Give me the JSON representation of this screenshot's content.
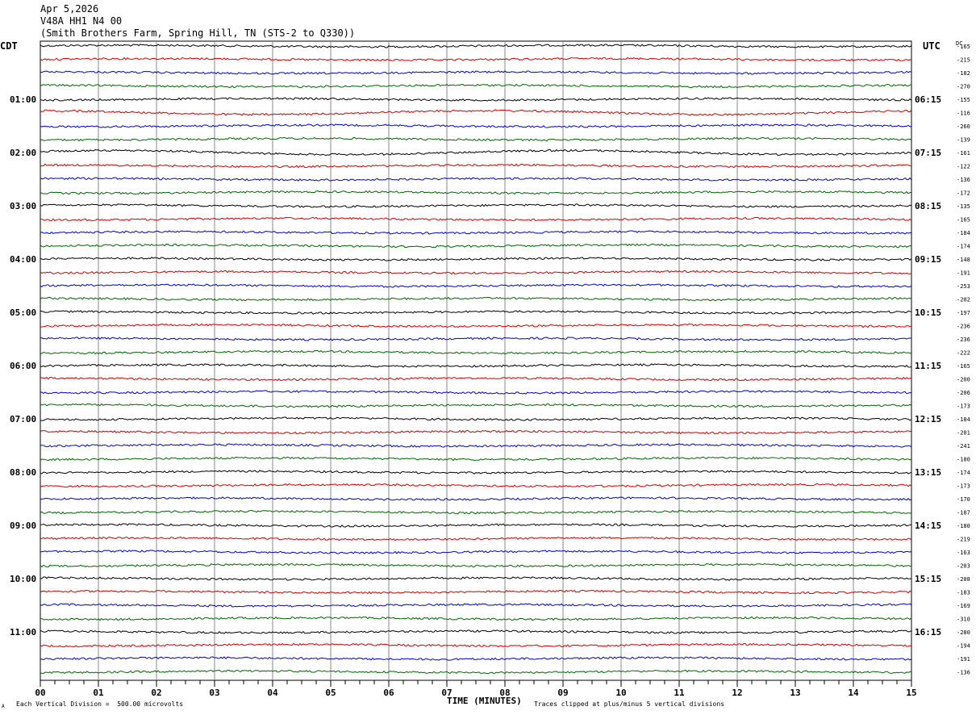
{
  "header": {
    "date": "Apr 5,2026",
    "station": "V48A HH1 N4 00",
    "location": "(Smith Brothers Farm, Spring Hill, TN (STS-2 to Q330))"
  },
  "left_timezone": "CDT",
  "right_timezone": "UTC",
  "dc_label": "DC",
  "footer": {
    "vertical_division": "Each Vertical Division =  500.00 microvolts",
    "clip_note": "Traces clipped at plus/minus 5 vertical divisions",
    "corner_mark": "A"
  },
  "chart_data": {
    "type": "line",
    "title": "",
    "xlabel": "TIME (MINUTES)",
    "ylabel": "",
    "xlim": [
      0,
      15
    ],
    "x_ticks": [
      "00",
      "01",
      "02",
      "03",
      "04",
      "05",
      "06",
      "07",
      "08",
      "09",
      "10",
      "11",
      "12",
      "13",
      "14",
      "15"
    ],
    "left_hour_labels": [
      "01:00",
      "02:00",
      "03:00",
      "04:00",
      "05:00",
      "06:00",
      "07:00",
      "08:00",
      "09:00",
      "10:00",
      "11:00"
    ],
    "right_hour_labels": [
      "06:15",
      "07:15",
      "08:15",
      "09:15",
      "10:15",
      "11:15",
      "12:15",
      "13:15",
      "14:15",
      "15:15",
      "16:15"
    ],
    "trace_colors": [
      "#000000",
      "#cc0000",
      "#0000cc",
      "#006600"
    ],
    "dc_offsets": [
      "-165",
      "-215",
      "-182",
      "-270",
      "-155",
      "-116",
      "-260",
      "-139",
      "-161",
      "-122",
      "-136",
      "-172",
      "-135",
      "-165",
      "-184",
      "-174",
      "-148",
      "-191",
      "-253",
      "-202",
      "-197",
      "-236",
      "-236",
      "-222",
      "-165",
      "-200",
      "-206",
      "-173",
      "-184",
      "-201",
      "-241",
      "-180",
      "-174",
      "-173",
      "-170",
      "-187",
      "-180",
      "-219",
      "-163",
      "-203",
      "-208",
      "-183",
      "-169",
      "-310",
      "-280",
      "-194",
      "-191",
      "-136"
    ],
    "trace_count": 48,
    "minutes_per_trace": 15,
    "grid": true
  }
}
